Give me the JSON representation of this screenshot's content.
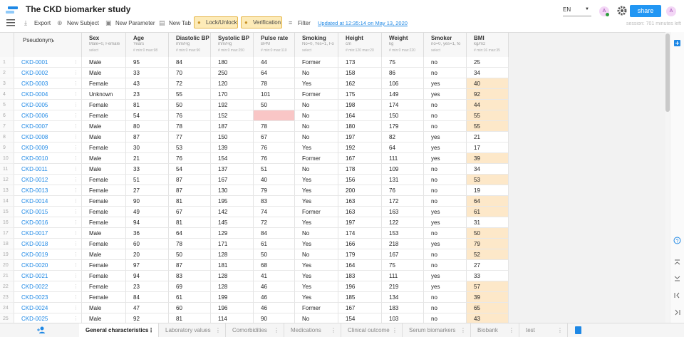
{
  "header": {
    "title": "The CKD biomarker study",
    "language": "EN",
    "avatar": "A",
    "share": "share",
    "user": "A",
    "session": "session: 701 minutes left"
  },
  "toolbar": {
    "items": [
      "Export",
      "New Subject",
      "New Parameter",
      "New Tab"
    ],
    "lock": "Lock/Unlock",
    "verification": "Verification",
    "filter": "Filter",
    "updated": "Updated at 12:35:14 on May 13, 2020"
  },
  "table": {
    "id_header": "Pseudonym",
    "colors": {
      "out_of_range": "#fde8c9",
      "missing": "#f9c6c6"
    },
    "columns": [
      {
        "name": "Sex",
        "unit": "Male=0, Female",
        "hint": "select"
      },
      {
        "name": "Age",
        "unit": "Years",
        "hint": "# min:0 max:98"
      },
      {
        "name": "Diastolic BP",
        "unit": "mm/Hg",
        "hint": "# min:0 max:90"
      },
      {
        "name": "Systolic BP",
        "unit": "mm/Hg",
        "hint": "# min:0 max:250"
      },
      {
        "name": "Pulse rate",
        "unit": "BPM",
        "hint": "# min:0 max:110"
      },
      {
        "name": "Smoking",
        "unit": "No=0, Yes=1, Fo",
        "hint": "select"
      },
      {
        "name": "Height",
        "unit": "cm",
        "hint": "# min:120 max:20"
      },
      {
        "name": "Weight",
        "unit": "kg",
        "hint": "# min:0 max:220"
      },
      {
        "name": "Smoker",
        "unit": "no=0, yes=1, fo",
        "hint": "select"
      },
      {
        "name": "BMI",
        "unit": "kg/m2",
        "hint": "# min:16 max:35"
      }
    ],
    "rows": [
      {
        "n": 1,
        "id": "CKD-0001",
        "cells": [
          "Male",
          95,
          84,
          180,
          44,
          "Former",
          173,
          75,
          "no",
          25
        ]
      },
      {
        "n": 2,
        "id": "CKD-0002",
        "cells": [
          "Male",
          33,
          70,
          250,
          64,
          "No",
          158,
          86,
          "no",
          34
        ]
      },
      {
        "n": 3,
        "id": "CKD-0003",
        "cells": [
          "Female",
          43,
          72,
          120,
          78,
          "Yes",
          162,
          106,
          "yes",
          40
        ],
        "out_of_range": [
          9
        ]
      },
      {
        "n": 4,
        "id": "CKD-0004",
        "cells": [
          "Unknown",
          23,
          55,
          170,
          101,
          "Former",
          175,
          149,
          "yes",
          92
        ],
        "out_of_range": [
          9
        ]
      },
      {
        "n": 5,
        "id": "CKD-0005",
        "cells": [
          "Female",
          81,
          50,
          192,
          50,
          "No",
          198,
          174,
          "no",
          44
        ],
        "out_of_range": [
          9
        ]
      },
      {
        "n": 6,
        "id": "CKD-0006",
        "cells": [
          "Female",
          54,
          76,
          152,
          null,
          "No",
          164,
          150,
          "no",
          55
        ],
        "out_of_range": [
          9
        ],
        "missing": [
          4
        ]
      },
      {
        "n": 7,
        "id": "CKD-0007",
        "cells": [
          "Male",
          80,
          78,
          187,
          78,
          "No",
          180,
          179,
          "no",
          55
        ],
        "out_of_range": [
          9
        ]
      },
      {
        "n": 8,
        "id": "CKD-0008",
        "cells": [
          "Male",
          87,
          77,
          150,
          67,
          "No",
          197,
          82,
          "yes",
          21
        ]
      },
      {
        "n": 9,
        "id": "CKD-0009",
        "cells": [
          "Female",
          30,
          53,
          139,
          76,
          "Yes",
          192,
          64,
          "yes",
          17
        ]
      },
      {
        "n": 10,
        "id": "CKD-0010",
        "cells": [
          "Male",
          21,
          76,
          154,
          76,
          "Former",
          167,
          111,
          "yes",
          39
        ],
        "out_of_range": [
          9
        ]
      },
      {
        "n": 11,
        "id": "CKD-0011",
        "cells": [
          "Male",
          33,
          54,
          137,
          51,
          "No",
          178,
          109,
          "no",
          34
        ]
      },
      {
        "n": 12,
        "id": "CKD-0012",
        "cells": [
          "Female",
          51,
          87,
          167,
          40,
          "Yes",
          156,
          131,
          "no",
          53
        ],
        "out_of_range": [
          9
        ]
      },
      {
        "n": 13,
        "id": "CKD-0013",
        "cells": [
          "Female",
          27,
          87,
          130,
          79,
          "Yes",
          200,
          76,
          "no",
          19
        ]
      },
      {
        "n": 14,
        "id": "CKD-0014",
        "cells": [
          "Female",
          90,
          81,
          195,
          83,
          "Yes",
          163,
          172,
          "no",
          64
        ],
        "out_of_range": [
          9
        ]
      },
      {
        "n": 15,
        "id": "CKD-0015",
        "cells": [
          "Female",
          49,
          67,
          142,
          74,
          "Former",
          163,
          163,
          "yes",
          61
        ],
        "out_of_range": [
          9
        ]
      },
      {
        "n": 16,
        "id": "CKD-0016",
        "cells": [
          "Female",
          94,
          81,
          145,
          72,
          "Yes",
          197,
          122,
          "yes",
          31
        ]
      },
      {
        "n": 17,
        "id": "CKD-0017",
        "cells": [
          "Male",
          36,
          64,
          129,
          84,
          "No",
          174,
          153,
          "no",
          50
        ],
        "out_of_range": [
          9
        ]
      },
      {
        "n": 18,
        "id": "CKD-0018",
        "cells": [
          "Female",
          60,
          78,
          171,
          61,
          "Yes",
          166,
          218,
          "yes",
          79
        ],
        "out_of_range": [
          9
        ]
      },
      {
        "n": 19,
        "id": "CKD-0019",
        "cells": [
          "Male",
          20,
          50,
          128,
          50,
          "No",
          179,
          167,
          "no",
          52
        ],
        "out_of_range": [
          9
        ]
      },
      {
        "n": 20,
        "id": "CKD-0020",
        "cells": [
          "Female",
          97,
          87,
          181,
          68,
          "Yes",
          164,
          75,
          "no",
          27
        ]
      },
      {
        "n": 21,
        "id": "CKD-0021",
        "cells": [
          "Female",
          94,
          83,
          128,
          41,
          "Yes",
          183,
          111,
          "yes",
          33
        ]
      },
      {
        "n": 22,
        "id": "CKD-0022",
        "cells": [
          "Female",
          23,
          69,
          128,
          46,
          "Yes",
          196,
          219,
          "yes",
          57
        ],
        "out_of_range": [
          9
        ]
      },
      {
        "n": 23,
        "id": "CKD-0023",
        "cells": [
          "Female",
          84,
          61,
          199,
          46,
          "Yes",
          185,
          134,
          "no",
          39
        ],
        "out_of_range": [
          9
        ]
      },
      {
        "n": 24,
        "id": "CKD-0024",
        "cells": [
          "Male",
          47,
          60,
          196,
          46,
          "Former",
          167,
          183,
          "no",
          65
        ],
        "out_of_range": [
          9
        ]
      },
      {
        "n": 25,
        "id": "CKD-0025",
        "cells": [
          "Male",
          92,
          81,
          114,
          90,
          "No",
          154,
          103,
          "no",
          43
        ],
        "out_of_range": [
          9
        ]
      }
    ]
  },
  "tabs": [
    "General characteristics",
    "Laboratory values",
    "Comorbidities",
    "Medications",
    "Clinical outcome",
    "Serum biomarkers",
    "Biobank",
    "test"
  ]
}
